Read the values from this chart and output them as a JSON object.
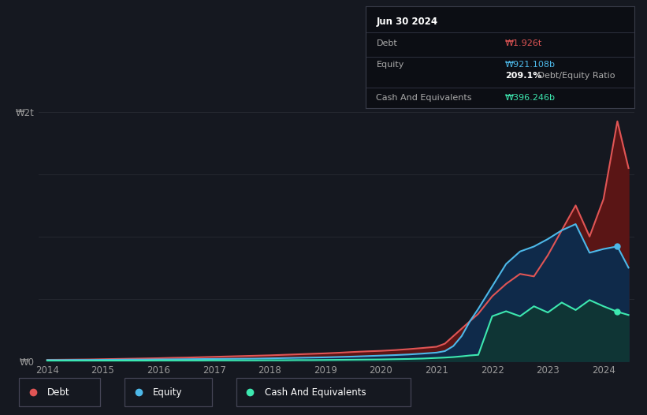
{
  "bg_color": "#151820",
  "plot_bg_color": "#151820",
  "grid_color": "#252830",
  "debt_color": "#e05555",
  "equity_color": "#4db8e8",
  "cash_color": "#3de8b0",
  "debt_fill": "#5a1515",
  "equity_fill": "#0f2a4a",
  "cash_fill": "#0f3535",
  "years": [
    2014.0,
    2014.25,
    2014.5,
    2014.75,
    2015.0,
    2015.25,
    2015.5,
    2015.75,
    2016.0,
    2016.25,
    2016.5,
    2016.75,
    2017.0,
    2017.25,
    2017.5,
    2017.75,
    2018.0,
    2018.25,
    2018.5,
    2018.75,
    2019.0,
    2019.25,
    2019.5,
    2019.75,
    2020.0,
    2020.25,
    2020.5,
    2020.75,
    2021.0,
    2021.15,
    2021.3,
    2021.45,
    2021.6,
    2021.75,
    2022.0,
    2022.25,
    2022.5,
    2022.75,
    2023.0,
    2023.25,
    2023.5,
    2023.75,
    2024.0,
    2024.25,
    2024.45
  ],
  "debt": [
    0.01,
    0.011,
    0.012,
    0.013,
    0.015,
    0.017,
    0.019,
    0.021,
    0.023,
    0.026,
    0.028,
    0.031,
    0.034,
    0.037,
    0.04,
    0.043,
    0.046,
    0.05,
    0.054,
    0.058,
    0.062,
    0.067,
    0.073,
    0.078,
    0.082,
    0.088,
    0.096,
    0.105,
    0.115,
    0.14,
    0.2,
    0.26,
    0.32,
    0.38,
    0.52,
    0.62,
    0.7,
    0.68,
    0.85,
    1.05,
    1.25,
    1.0,
    1.3,
    1.926,
    1.55
  ],
  "equity": [
    0.008,
    0.008,
    0.009,
    0.009,
    0.01,
    0.011,
    0.012,
    0.012,
    0.013,
    0.014,
    0.015,
    0.016,
    0.017,
    0.018,
    0.019,
    0.02,
    0.022,
    0.024,
    0.026,
    0.028,
    0.03,
    0.033,
    0.036,
    0.04,
    0.044,
    0.048,
    0.053,
    0.06,
    0.068,
    0.08,
    0.12,
    0.2,
    0.32,
    0.42,
    0.6,
    0.78,
    0.88,
    0.92,
    0.98,
    1.05,
    1.1,
    0.87,
    0.9,
    0.921,
    0.75
  ],
  "cash": [
    0.003,
    0.003,
    0.003,
    0.003,
    0.004,
    0.004,
    0.004,
    0.004,
    0.005,
    0.005,
    0.005,
    0.005,
    0.006,
    0.006,
    0.006,
    0.006,
    0.007,
    0.007,
    0.008,
    0.008,
    0.009,
    0.01,
    0.011,
    0.012,
    0.013,
    0.015,
    0.017,
    0.02,
    0.025,
    0.028,
    0.032,
    0.038,
    0.045,
    0.05,
    0.36,
    0.4,
    0.36,
    0.44,
    0.39,
    0.47,
    0.41,
    0.49,
    0.44,
    0.396,
    0.37
  ],
  "ylim": [
    0.0,
    2.0
  ],
  "xlim": [
    2013.85,
    2024.55
  ],
  "yticks": [
    0.0,
    2.0
  ],
  "ytick_labels": [
    "₩0",
    "₩2t"
  ],
  "xticks": [
    2014,
    2015,
    2016,
    2017,
    2018,
    2019,
    2020,
    2021,
    2022,
    2023,
    2024
  ],
  "tooltip_date": "Jun 30 2024",
  "tooltip_debt_label": "Debt",
  "tooltip_debt_value": "₩1.926t",
  "tooltip_equity_label": "Equity",
  "tooltip_equity_value": "₩921.108b",
  "tooltip_ratio_value": "209.1%",
  "tooltip_ratio_label": " Debt/Equity Ratio",
  "tooltip_cash_label": "Cash And Equivalents",
  "tooltip_cash_value": "₩396.246b",
  "legend_debt": "Debt",
  "legend_equity": "Equity",
  "legend_cash": "Cash And Equivalents",
  "dot_equity_x": 2024.25,
  "dot_equity_y": 0.921,
  "dot_cash_x": 2024.25,
  "dot_cash_y": 0.396
}
